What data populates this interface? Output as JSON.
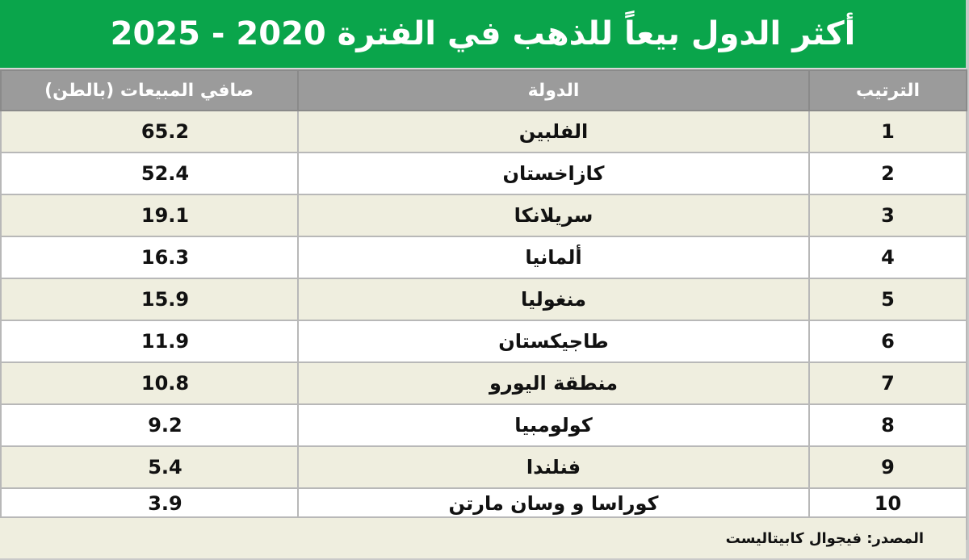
{
  "title": "أكثر الدول بيعاً للذهب في الفترة 2020 - 2025",
  "headers": {
    "rank": "الترتيب",
    "country": "الدولة",
    "value": "صافي المبيعات (بالطن)"
  },
  "source": "المصدر: فيجوال كابيتاليست",
  "colors": {
    "header_green": "#0aa54b",
    "column_header_gray": "#9b9b9b",
    "row_beige": "#efeedf"
  },
  "chart_data": {
    "type": "table",
    "title": "أكثر الدول بيعاً للذهب في الفترة 2020 - 2025",
    "columns": [
      "الترتيب",
      "الدولة",
      "صافي المبيعات (بالطن)"
    ],
    "rows": [
      {
        "rank": "1",
        "country": "الفلبين",
        "value": "65.2"
      },
      {
        "rank": "2",
        "country": "كازاخستان",
        "value": "52.4"
      },
      {
        "rank": "3",
        "country": "سريلانكا",
        "value": "19.1"
      },
      {
        "rank": "4",
        "country": "ألمانيا",
        "value": "16.3"
      },
      {
        "rank": "5",
        "country": "منغوليا",
        "value": "15.9"
      },
      {
        "rank": "6",
        "country": "طاجيكستان",
        "value": "11.9"
      },
      {
        "rank": "7",
        "country": "منطقة اليورو",
        "value": "10.8"
      },
      {
        "rank": "8",
        "country": "كولومبيا",
        "value": "9.2"
      },
      {
        "rank": "9",
        "country": "فنلندا",
        "value": "5.4"
      },
      {
        "rank": "10",
        "country": "كوراسا و وسان مارتن",
        "value": "3.9"
      }
    ]
  }
}
